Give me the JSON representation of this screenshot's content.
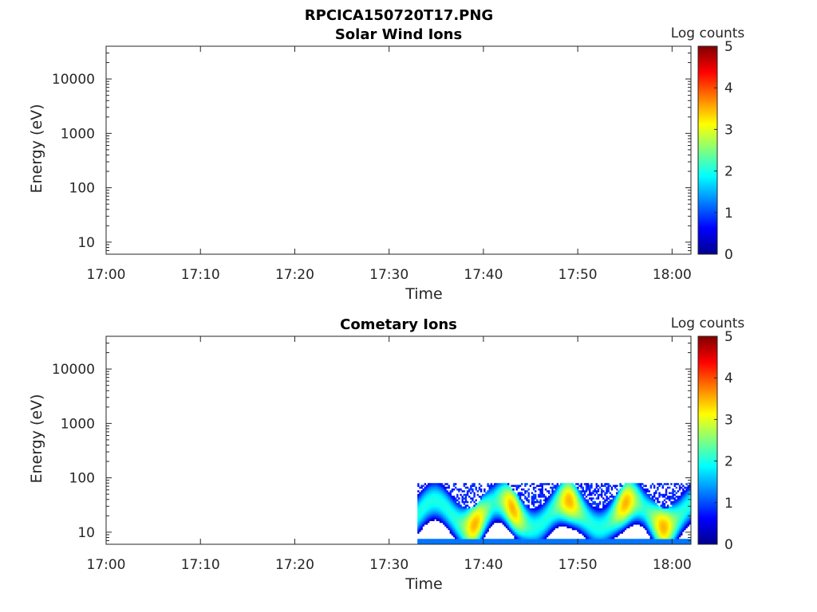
{
  "figure_title": "RPCICA150720T17.PNG",
  "chart_data": [
    {
      "type": "heatmap",
      "title": "Solar Wind Ions",
      "xlabel": "Time",
      "ylabel": "Energy (eV)",
      "x_ticks": [
        "17:00",
        "17:10",
        "17:20",
        "17:30",
        "17:40",
        "17:50",
        "18:00"
      ],
      "xlim": [
        "17:00",
        "18:02"
      ],
      "y_scale": "log",
      "y_ticks": [
        10,
        100,
        1000,
        10000
      ],
      "y_tick_labels": [
        "10",
        "100",
        "1000",
        "10000"
      ],
      "ylim": [
        6,
        40000
      ],
      "colorbar": {
        "label": "Log counts",
        "range": [
          0,
          5
        ],
        "ticks": [
          "0",
          "1",
          "2",
          "3",
          "4",
          "5"
        ],
        "colormap": "jet"
      },
      "data": []
    },
    {
      "type": "heatmap",
      "title": "Cometary Ions",
      "xlabel": "Time",
      "ylabel": "Energy (eV)",
      "x_ticks": [
        "17:00",
        "17:10",
        "17:20",
        "17:30",
        "17:40",
        "17:50",
        "18:00"
      ],
      "xlim": [
        "17:00",
        "18:02"
      ],
      "y_scale": "log",
      "y_ticks": [
        10,
        100,
        1000,
        10000
      ],
      "y_tick_labels": [
        "10",
        "100",
        "1000",
        "10000"
      ],
      "ylim": [
        6,
        40000
      ],
      "colorbar": {
        "label": "Log counts",
        "range": [
          0,
          5
        ],
        "ticks": [
          "0",
          "1",
          "2",
          "3",
          "4",
          "5"
        ],
        "colormap": "jet"
      },
      "data_extent": {
        "time_start": "17:33",
        "time_end": "18:02",
        "energy_min_eV": 6,
        "energy_max_eV": 80
      },
      "data_description_values": {
        "peak_log_counts": 3.5,
        "typical_band_energy_eV": [
          12,
          40
        ],
        "peak_times": [
          "17:39",
          "17:43",
          "17:49",
          "17:55",
          "17:59"
        ]
      }
    }
  ]
}
